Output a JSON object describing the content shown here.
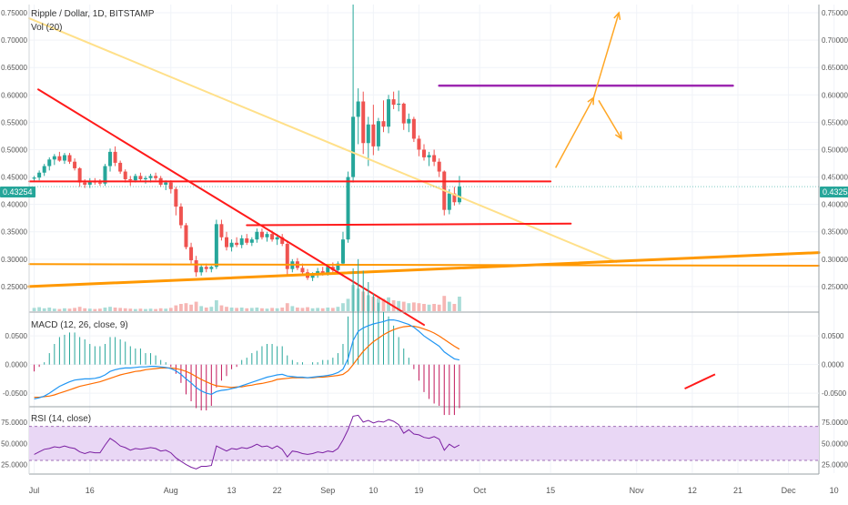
{
  "header": {
    "symbol_title": "Ripple / Dollar, 1D, BITSTAMP",
    "volume_label": "Vol (20)",
    "macd_label": "MACD (12, 26, close, 9)",
    "rsi_label": "RSI (14, close)",
    "last_price": "0.43254"
  },
  "colors": {
    "up": "#26a69a",
    "down": "#ef5350",
    "vol_up": "#a8dcd7",
    "vol_down": "#f6b6b4",
    "trend_red": "#ff1a1a",
    "trend_yellow": "#ffe08a",
    "trend_orange": "#ff9800",
    "resistance_purple": "#9c27b0",
    "arrow_orange": "#ffa726",
    "macd_line": "#2196f3",
    "signal_line": "#ff6d00",
    "rsi_line": "#7b1fa2",
    "rsi_band": "#e9d7f5",
    "grid": "#f0f3f8",
    "axis": "#555555"
  },
  "chart_data": [
    {
      "type": "candlestick",
      "title": "Ripple / Dollar, 1D, BITSTAMP",
      "x_start_day": 186,
      "x_range": [
        185,
        341
      ],
      "ylim": [
        0.205,
        0.765
      ],
      "y_ticks": [
        "0.25000",
        "0.30000",
        "0.35000",
        "0.40000",
        "0.45000",
        "0.50000",
        "0.55000",
        "0.60000",
        "0.65000",
        "0.70000",
        "0.75000"
      ],
      "x_ticks": [
        {
          "label": "Jul",
          "day": 186
        },
        {
          "label": "16",
          "day": 197
        },
        {
          "label": "Aug",
          "day": 213
        },
        {
          "label": "13",
          "day": 225
        },
        {
          "label": "22",
          "day": 234
        },
        {
          "label": "Sep",
          "day": 244
        },
        {
          "label": "10",
          "day": 253
        },
        {
          "label": "19",
          "day": 262
        },
        {
          "label": "Oct",
          "day": 274
        },
        {
          "label": "15",
          "day": 288
        },
        {
          "label": "Nov",
          "day": 305
        },
        {
          "label": "12",
          "day": 316
        },
        {
          "label": "21",
          "day": 325
        },
        {
          "label": "Dec",
          "day": 335
        },
        {
          "label": "10",
          "day": 344
        }
      ],
      "last_value": "0.43254",
      "candles": [
        [
          0.447,
          0.452,
          0.442,
          0.449
        ],
        [
          0.449,
          0.462,
          0.444,
          0.458
        ],
        [
          0.458,
          0.474,
          0.452,
          0.47
        ],
        [
          0.47,
          0.486,
          0.462,
          0.482
        ],
        [
          0.482,
          0.492,
          0.472,
          0.488
        ],
        [
          0.488,
          0.496,
          0.478,
          0.48
        ],
        [
          0.48,
          0.494,
          0.474,
          0.49
        ],
        [
          0.49,
          0.494,
          0.474,
          0.478
        ],
        [
          0.478,
          0.484,
          0.462,
          0.466
        ],
        [
          0.466,
          0.468,
          0.432,
          0.44
        ],
        [
          0.44,
          0.446,
          0.43,
          0.436
        ],
        [
          0.436,
          0.448,
          0.43,
          0.442
        ],
        [
          0.442,
          0.448,
          0.436,
          0.44
        ],
        [
          0.44,
          0.446,
          0.434,
          0.438
        ],
        [
          0.438,
          0.474,
          0.434,
          0.47
        ],
        [
          0.47,
          0.502,
          0.46,
          0.496
        ],
        [
          0.496,
          0.506,
          0.47,
          0.476
        ],
        [
          0.476,
          0.48,
          0.456,
          0.46
        ],
        [
          0.46,
          0.464,
          0.44,
          0.446
        ],
        [
          0.446,
          0.452,
          0.434,
          0.444
        ],
        [
          0.444,
          0.456,
          0.44,
          0.452
        ],
        [
          0.452,
          0.458,
          0.442,
          0.446
        ],
        [
          0.446,
          0.452,
          0.438,
          0.448
        ],
        [
          0.448,
          0.456,
          0.44,
          0.452
        ],
        [
          0.452,
          0.458,
          0.444,
          0.448
        ],
        [
          0.448,
          0.452,
          0.432,
          0.436
        ],
        [
          0.436,
          0.444,
          0.426,
          0.44
        ],
        [
          0.44,
          0.444,
          0.42,
          0.428
        ],
        [
          0.428,
          0.432,
          0.38,
          0.396
        ],
        [
          0.396,
          0.402,
          0.356,
          0.362
        ],
        [
          0.362,
          0.366,
          0.318,
          0.322
        ],
        [
          0.322,
          0.33,
          0.292,
          0.298
        ],
        [
          0.298,
          0.306,
          0.268,
          0.276
        ],
        [
          0.276,
          0.29,
          0.27,
          0.286
        ],
        [
          0.286,
          0.292,
          0.276,
          0.282
        ],
        [
          0.282,
          0.288,
          0.276,
          0.286
        ],
        [
          0.286,
          0.372,
          0.282,
          0.364
        ],
        [
          0.364,
          0.372,
          0.334,
          0.34
        ],
        [
          0.34,
          0.35,
          0.316,
          0.322
        ],
        [
          0.322,
          0.336,
          0.314,
          0.33
        ],
        [
          0.33,
          0.34,
          0.322,
          0.326
        ],
        [
          0.326,
          0.344,
          0.32,
          0.338
        ],
        [
          0.338,
          0.346,
          0.326,
          0.33
        ],
        [
          0.33,
          0.34,
          0.324,
          0.336
        ],
        [
          0.336,
          0.356,
          0.33,
          0.35
        ],
        [
          0.35,
          0.356,
          0.336,
          0.34
        ],
        [
          0.34,
          0.35,
          0.332,
          0.346
        ],
        [
          0.346,
          0.352,
          0.332,
          0.336
        ],
        [
          0.336,
          0.346,
          0.326,
          0.34
        ],
        [
          0.34,
          0.346,
          0.324,
          0.328
        ],
        [
          0.328,
          0.334,
          0.27,
          0.282
        ],
        [
          0.282,
          0.3,
          0.276,
          0.296
        ],
        [
          0.296,
          0.302,
          0.28,
          0.284
        ],
        [
          0.284,
          0.292,
          0.272,
          0.276
        ],
        [
          0.276,
          0.282,
          0.262,
          0.266
        ],
        [
          0.266,
          0.276,
          0.26,
          0.272
        ],
        [
          0.272,
          0.284,
          0.266,
          0.278
        ],
        [
          0.278,
          0.286,
          0.27,
          0.274
        ],
        [
          0.274,
          0.29,
          0.27,
          0.286
        ],
        [
          0.286,
          0.294,
          0.276,
          0.28
        ],
        [
          0.28,
          0.296,
          0.276,
          0.292
        ],
        [
          0.292,
          0.35,
          0.288,
          0.336
        ],
        [
          0.336,
          0.46,
          0.33,
          0.45
        ],
        [
          0.45,
          0.765,
          0.44,
          0.56
        ],
        [
          0.56,
          0.612,
          0.51,
          0.588
        ],
        [
          0.588,
          0.606,
          0.492,
          0.512
        ],
        [
          0.512,
          0.56,
          0.47,
          0.546
        ],
        [
          0.546,
          0.582,
          0.49,
          0.506
        ],
        [
          0.506,
          0.558,
          0.498,
          0.552
        ],
        [
          0.552,
          0.59,
          0.532,
          0.542
        ],
        [
          0.542,
          0.6,
          0.53,
          0.592
        ],
        [
          0.592,
          0.606,
          0.574,
          0.582
        ],
        [
          0.582,
          0.608,
          0.57,
          0.584
        ],
        [
          0.584,
          0.586,
          0.536,
          0.548
        ],
        [
          0.548,
          0.566,
          0.532,
          0.556
        ],
        [
          0.556,
          0.56,
          0.514,
          0.52
        ],
        [
          0.52,
          0.526,
          0.488,
          0.5
        ],
        [
          0.5,
          0.51,
          0.48,
          0.486
        ],
        [
          0.486,
          0.496,
          0.47,
          0.49
        ],
        [
          0.49,
          0.5,
          0.47,
          0.478
        ],
        [
          0.478,
          0.484,
          0.45,
          0.46
        ],
        [
          0.46,
          0.462,
          0.38,
          0.39
        ],
        [
          0.39,
          0.428,
          0.382,
          0.42
        ],
        [
          0.42,
          0.432,
          0.398,
          0.404
        ],
        [
          0.404,
          0.452,
          0.4,
          0.43254
        ]
      ],
      "volume": [
        0.09,
        0.11,
        0.08,
        0.1,
        0.07,
        0.06,
        0.08,
        0.07,
        0.09,
        0.12,
        0.08,
        0.07,
        0.06,
        0.07,
        0.1,
        0.12,
        0.1,
        0.09,
        0.08,
        0.07,
        0.06,
        0.07,
        0.06,
        0.07,
        0.06,
        0.08,
        0.07,
        0.09,
        0.16,
        0.2,
        0.22,
        0.18,
        0.26,
        0.14,
        0.1,
        0.12,
        0.3,
        0.16,
        0.12,
        0.1,
        0.09,
        0.1,
        0.08,
        0.09,
        0.1,
        0.08,
        0.07,
        0.09,
        0.08,
        0.1,
        0.22,
        0.14,
        0.1,
        0.09,
        0.11,
        0.08,
        0.09,
        0.08,
        0.1,
        0.09,
        0.12,
        0.22,
        0.34,
        0.72,
        0.62,
        0.54,
        0.44,
        0.4,
        0.36,
        0.34,
        0.38,
        0.3,
        0.28,
        0.26,
        0.22,
        0.24,
        0.22,
        0.2,
        0.18,
        0.2,
        0.18,
        0.42,
        0.26,
        0.2,
        0.4
      ],
      "annotations": {
        "red_downtrend": [
          [
            186.8,
            0.61
          ],
          [
            263,
            0.18
          ]
        ],
        "yellow_downtrend": [
          [
            185,
            0.74
          ],
          [
            301,
            0.295
          ]
        ],
        "orange_uptrend": [
          [
            185,
            0.25
          ],
          [
            341,
            0.312
          ]
        ],
        "orange_horizontal": [
          [
            185,
            0.291
          ],
          [
            341,
            0.288
          ]
        ],
        "red_h_upper": [
          [
            185,
            0.442
          ],
          [
            288,
            0.442
          ]
        ],
        "red_h_lower": [
          [
            228,
            0.362
          ],
          [
            292,
            0.365
          ]
        ],
        "purple_resistance": [
          [
            266,
            0.617
          ],
          [
            324,
            0.617
          ]
        ],
        "arrows": [
          {
            "from": [
              289,
              0.467
            ],
            "to": [
              296.5,
              0.595
            ]
          },
          {
            "from": [
              296.5,
              0.595
            ],
            "to": [
              301.5,
              0.75
            ]
          },
          {
            "from": [
              297.5,
              0.59
            ],
            "to": [
              302,
              0.52
            ]
          }
        ]
      }
    },
    {
      "type": "macd",
      "title": "MACD (12, 26, close, 9)",
      "ylim": [
        -0.072,
        0.09
      ],
      "y_ticks": [
        "0.0500",
        "0.0000",
        "-0.0500"
      ],
      "macd": [
        -0.06,
        -0.058,
        -0.055,
        -0.05,
        -0.044,
        -0.038,
        -0.034,
        -0.03,
        -0.027,
        -0.026,
        -0.025,
        -0.025,
        -0.024,
        -0.022,
        -0.018,
        -0.012,
        -0.009,
        -0.007,
        -0.006,
        -0.006,
        -0.005,
        -0.004,
        -0.004,
        -0.003,
        -0.003,
        -0.004,
        -0.005,
        -0.007,
        -0.011,
        -0.017,
        -0.025,
        -0.032,
        -0.04,
        -0.046,
        -0.05,
        -0.052,
        -0.047,
        -0.045,
        -0.044,
        -0.042,
        -0.04,
        -0.037,
        -0.034,
        -0.031,
        -0.028,
        -0.025,
        -0.022,
        -0.02,
        -0.018,
        -0.017,
        -0.02,
        -0.021,
        -0.022,
        -0.022,
        -0.023,
        -0.022,
        -0.021,
        -0.02,
        -0.019,
        -0.017,
        -0.014,
        -0.008,
        0.01,
        0.042,
        0.058,
        0.064,
        0.068,
        0.071,
        0.073,
        0.075,
        0.078,
        0.078,
        0.076,
        0.073,
        0.07,
        0.065,
        0.058,
        0.05,
        0.044,
        0.038,
        0.032,
        0.022,
        0.016,
        0.01,
        0.008
      ],
      "signal": [
        -0.057,
        -0.057,
        -0.056,
        -0.055,
        -0.053,
        -0.05,
        -0.047,
        -0.044,
        -0.041,
        -0.038,
        -0.036,
        -0.034,
        -0.032,
        -0.03,
        -0.027,
        -0.024,
        -0.021,
        -0.018,
        -0.016,
        -0.014,
        -0.012,
        -0.011,
        -0.009,
        -0.008,
        -0.007,
        -0.006,
        -0.006,
        -0.006,
        -0.007,
        -0.009,
        -0.012,
        -0.016,
        -0.021,
        -0.026,
        -0.03,
        -0.034,
        -0.037,
        -0.038,
        -0.039,
        -0.04,
        -0.039,
        -0.039,
        -0.037,
        -0.036,
        -0.034,
        -0.033,
        -0.031,
        -0.029,
        -0.026,
        -0.025,
        -0.024,
        -0.023,
        -0.023,
        -0.023,
        -0.023,
        -0.023,
        -0.022,
        -0.022,
        -0.021,
        -0.02,
        -0.019,
        -0.017,
        -0.011,
        -0.0,
        0.012,
        0.023,
        0.032,
        0.04,
        0.046,
        0.052,
        0.057,
        0.061,
        0.064,
        0.066,
        0.067,
        0.067,
        0.065,
        0.062,
        0.059,
        0.055,
        0.05,
        0.044,
        0.038,
        0.032,
        0.027
      ]
    },
    {
      "type": "line",
      "title": "RSI (14, close)",
      "ylim": [
        15,
        92
      ],
      "y_ticks": [
        "75.0000",
        "50.0000",
        "25.0000"
      ],
      "band": [
        30,
        70
      ],
      "rsi": [
        37,
        40,
        43,
        44,
        46,
        45,
        47,
        45,
        44,
        40,
        38,
        40,
        39,
        39,
        48,
        56,
        52,
        47,
        45,
        42,
        44,
        43,
        44,
        45,
        44,
        41,
        42,
        39,
        33,
        29,
        25,
        22,
        20,
        23,
        23,
        24,
        47,
        44,
        41,
        44,
        43,
        45,
        44,
        46,
        49,
        46,
        47,
        44,
        47,
        43,
        34,
        41,
        40,
        38,
        37,
        38,
        40,
        39,
        41,
        40,
        44,
        54,
        66,
        82,
        83,
        75,
        77,
        74,
        76,
        75,
        78,
        76,
        72,
        62,
        66,
        61,
        60,
        57,
        56,
        58,
        55,
        42,
        49,
        45,
        48
      ]
    }
  ]
}
